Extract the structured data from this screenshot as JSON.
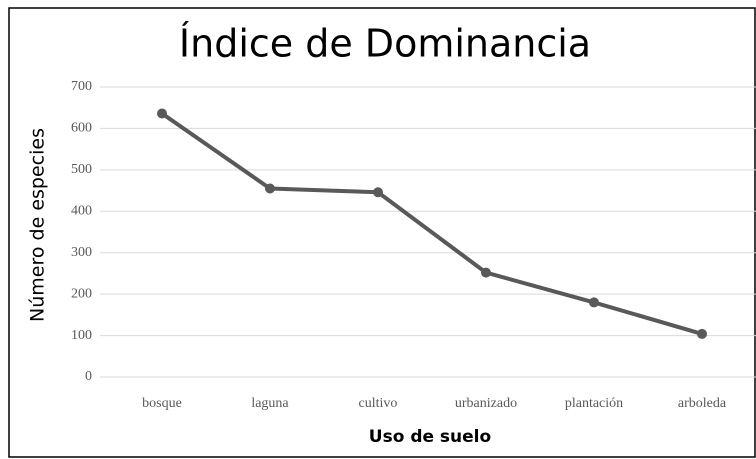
{
  "chart_data": {
    "type": "line",
    "title": "Índice de Dominancia",
    "x_label": "Uso de suelo",
    "y_label": "Número de especies",
    "categories": [
      "bosque",
      "laguna",
      "cultivo",
      "urbanizado",
      "plantación",
      "arboleda"
    ],
    "values": [
      636,
      455,
      446,
      252,
      180,
      104
    ],
    "color": "#595959",
    "ylim": [
      0,
      700
    ],
    "yticks": [
      0,
      100,
      200,
      300,
      400,
      500,
      600,
      700
    ],
    "grid": true
  }
}
